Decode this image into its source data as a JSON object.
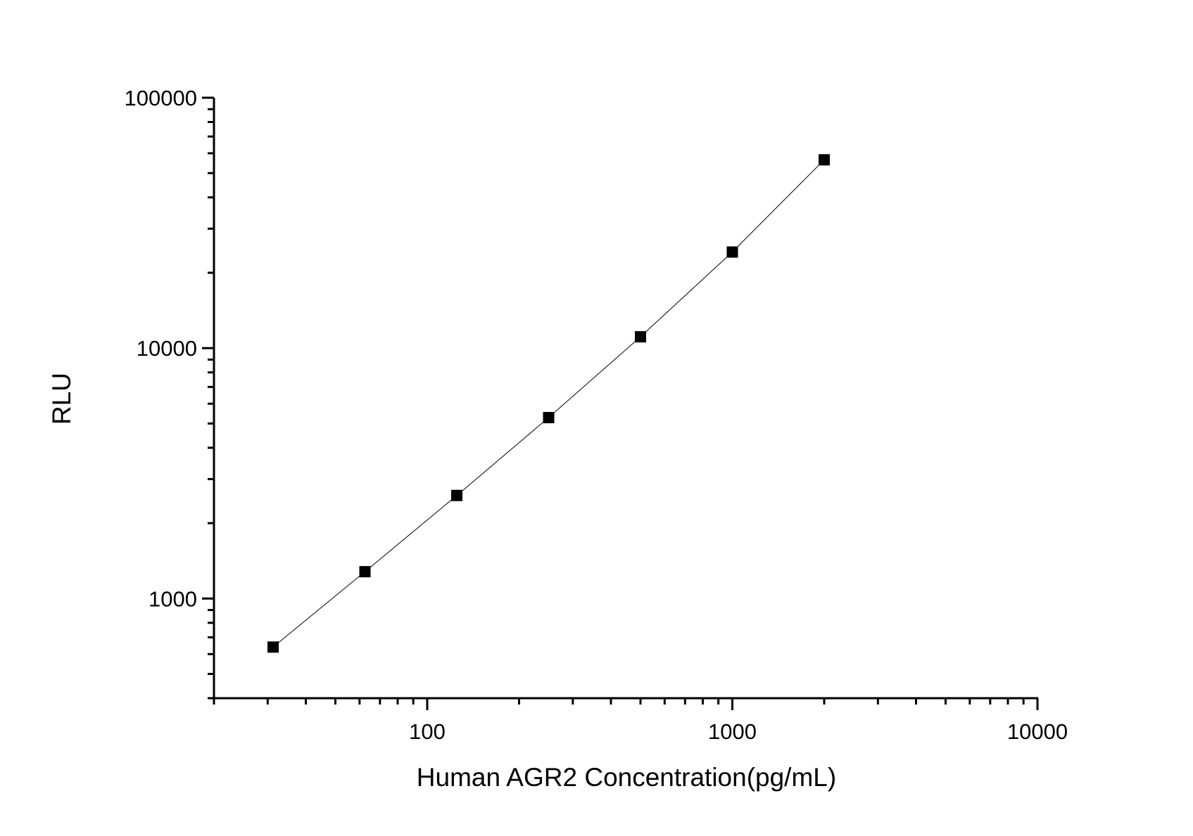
{
  "chart_data": {
    "type": "line",
    "title": "",
    "xlabel": "Human AGR2 Concentration(pg/mL)",
    "ylabel": "RLU",
    "xscale": "log",
    "yscale": "log",
    "xlim": [
      20,
      10000
    ],
    "ylim": [
      400,
      100000
    ],
    "xticks": [
      100,
      1000,
      10000
    ],
    "xtick_labels": [
      "100",
      "1000",
      "10000"
    ],
    "yticks": [
      1000,
      10000,
      100000
    ],
    "ytick_labels": [
      "1000",
      "10000",
      "100000"
    ],
    "grid": false,
    "marker": "square",
    "color": "#000000",
    "series": [
      {
        "x": [
          31.25,
          62.5,
          125,
          250,
          500,
          1000,
          2000
        ],
        "y": [
          640,
          1280,
          2580,
          5280,
          11100,
          24200,
          56500
        ]
      }
    ]
  }
}
